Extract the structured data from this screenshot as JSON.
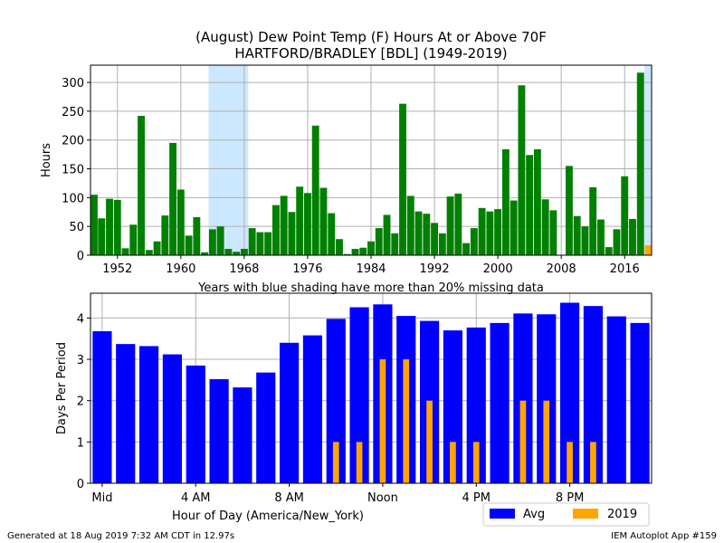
{
  "footer": {
    "generated": "Generated at 18 Aug 2019 7:32 AM CDT in 12.97s",
    "app": "IEM Autoplot App #159"
  },
  "colors": {
    "annual_bars": "#008000",
    "current_year_bar": "#ffa500",
    "avg_bars": "#0000ff",
    "year_bars": "#ffa500",
    "missing_shade": "#cce8ff",
    "grid": "#b0b0b0"
  },
  "chart_data": [
    {
      "type": "bar",
      "title": "(August) Dew Point Temp (F) Hours At or Above 70F",
      "subtitle": "HARTFORD/BRADLEY [BDL] (1949-2019)",
      "ylabel": "Hours",
      "xlabel": "Years with blue shading have more than 20% missing data",
      "xlim": [
        1948.6,
        2019.4
      ],
      "ylim": [
        0,
        330
      ],
      "xticks": [
        1952,
        1960,
        1968,
        1976,
        1984,
        1992,
        2000,
        2008,
        2016
      ],
      "yticks": [
        0,
        50,
        100,
        150,
        200,
        250,
        300
      ],
      "grid": true,
      "missing_shaded_years": [
        [
          1963.5,
          1968.5
        ],
        [
          2018.5,
          2019.5
        ]
      ],
      "years": [
        1949,
        1950,
        1951,
        1952,
        1953,
        1954,
        1955,
        1956,
        1957,
        1958,
        1959,
        1960,
        1961,
        1962,
        1963,
        1964,
        1965,
        1966,
        1967,
        1968,
        1969,
        1970,
        1971,
        1972,
        1973,
        1974,
        1975,
        1976,
        1977,
        1978,
        1979,
        1980,
        1981,
        1982,
        1983,
        1984,
        1985,
        1986,
        1987,
        1988,
        1989,
        1990,
        1991,
        1992,
        1993,
        1994,
        1995,
        1996,
        1997,
        1998,
        1999,
        2000,
        2001,
        2002,
        2003,
        2004,
        2005,
        2006,
        2007,
        2008,
        2009,
        2010,
        2011,
        2012,
        2013,
        2014,
        2015,
        2016,
        2017,
        2018,
        2019
      ],
      "values": [
        105,
        64,
        98,
        96,
        12,
        53,
        242,
        9,
        24,
        69,
        195,
        114,
        34,
        66,
        5,
        45,
        50,
        11,
        6,
        11,
        47,
        40,
        40,
        87,
        103,
        75,
        119,
        108,
        225,
        117,
        73,
        28,
        2,
        11,
        13,
        24,
        47,
        70,
        38,
        263,
        103,
        76,
        72,
        56,
        38,
        102,
        107,
        21,
        47,
        82,
        76,
        80,
        184,
        95,
        295,
        174,
        184,
        97,
        78,
        0,
        155,
        68,
        50,
        118,
        62,
        14,
        45,
        137,
        63,
        317,
        17
      ],
      "highlight_year": 2019
    },
    {
      "type": "bar",
      "ylabel": "Days Per Period",
      "xlabel": "Hour of Day (America/New_York)",
      "categories": [
        "0",
        "1",
        "2",
        "3",
        "4",
        "5",
        "6",
        "7",
        "8",
        "9",
        "10",
        "11",
        "12",
        "13",
        "14",
        "15",
        "16",
        "17",
        "18",
        "19",
        "20",
        "21",
        "22",
        "23"
      ],
      "tick_labels": [
        {
          "pos": 0,
          "label": "Mid"
        },
        {
          "pos": 4,
          "label": "4 AM"
        },
        {
          "pos": 8,
          "label": "8 AM"
        },
        {
          "pos": 12,
          "label": "Noon"
        },
        {
          "pos": 16,
          "label": "4 PM"
        },
        {
          "pos": 20,
          "label": "8 PM"
        }
      ],
      "xlim": [
        -0.5,
        23.5
      ],
      "ylim": [
        0,
        4.6
      ],
      "yticks": [
        0,
        1,
        2,
        3,
        4
      ],
      "grid": true,
      "legend_position": "below-right",
      "series": [
        {
          "name": "Avg",
          "values": [
            3.68,
            3.37,
            3.32,
            3.12,
            2.85,
            2.52,
            2.32,
            2.68,
            3.4,
            3.58,
            3.98,
            4.26,
            4.33,
            4.05,
            3.93,
            3.7,
            3.77,
            3.88,
            4.11,
            4.09,
            4.37,
            4.29,
            4.04,
            3.88
          ]
        },
        {
          "name": "2019",
          "values": [
            0,
            0,
            0,
            0,
            0,
            0,
            0,
            0,
            0,
            0,
            1,
            1,
            3,
            3,
            2,
            1,
            1,
            0,
            2,
            2,
            1,
            1,
            0,
            0
          ]
        }
      ]
    }
  ]
}
